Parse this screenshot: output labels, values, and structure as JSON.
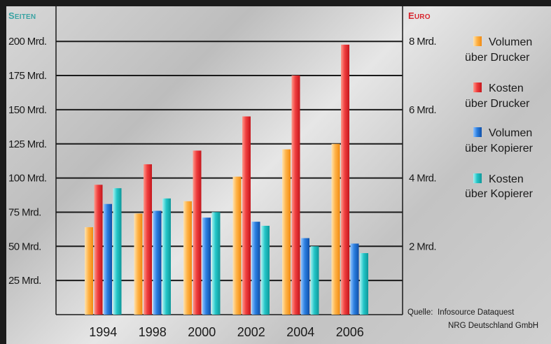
{
  "chart_data": {
    "type": "bar",
    "categories": [
      "1994",
      "1998",
      "2000",
      "2002",
      "2004",
      "2006"
    ],
    "left_axis": {
      "title_first": "S",
      "title_rest": "EITEN",
      "title_color": "#3aa3a3",
      "ylim": [
        0,
        225
      ],
      "ticks": [
        {
          "value": 25,
          "label": "25 Mrd."
        },
        {
          "value": 50,
          "label": "50 Mrd."
        },
        {
          "value": 75,
          "label": "75 Mrd."
        },
        {
          "value": 100,
          "label": "100 Mrd."
        },
        {
          "value": 125,
          "label": "125 Mrd."
        },
        {
          "value": 150,
          "label": "150 Mrd."
        },
        {
          "value": 175,
          "label": "175 Mrd."
        },
        {
          "value": 200,
          "label": "200 Mrd."
        }
      ]
    },
    "right_axis": {
      "title_first": "E",
      "title_rest": "URO",
      "title_color": "#d8262e",
      "ylim": [
        0,
        9
      ],
      "ticks": [
        {
          "value": 2,
          "label": "2 Mrd."
        },
        {
          "value": 4,
          "label": "4 Mrd."
        },
        {
          "value": 6,
          "label": "6 Mrd."
        },
        {
          "value": 8,
          "label": "8 Mrd."
        }
      ]
    },
    "series": [
      {
        "name_line1": "Volumen",
        "name_line2": "über Drucker",
        "axis": "left",
        "color": "orange",
        "values": [
          64,
          74,
          83,
          101,
          121,
          125
        ]
      },
      {
        "name_line1": "Kosten",
        "name_line2": "über Drucker",
        "axis": "right",
        "color": "red",
        "values": [
          3.8,
          4.4,
          4.8,
          5.8,
          7.0,
          7.9
        ]
      },
      {
        "name_line1": "Volumen",
        "name_line2": "über Kopierer",
        "axis": "left",
        "color": "blue",
        "values": [
          81,
          76,
          71,
          68,
          56,
          52
        ]
      },
      {
        "name_line1": "Kosten",
        "name_line2": "über Kopierer",
        "axis": "right",
        "color": "cyan",
        "values": [
          3.7,
          3.4,
          3.0,
          2.6,
          2.0,
          1.8
        ]
      }
    ],
    "grid": true,
    "legend_position": "right"
  },
  "source": {
    "label": "Quelle:",
    "line1": "Infosource Dataquest",
    "line2": "NRG Deutschland GmbH"
  }
}
